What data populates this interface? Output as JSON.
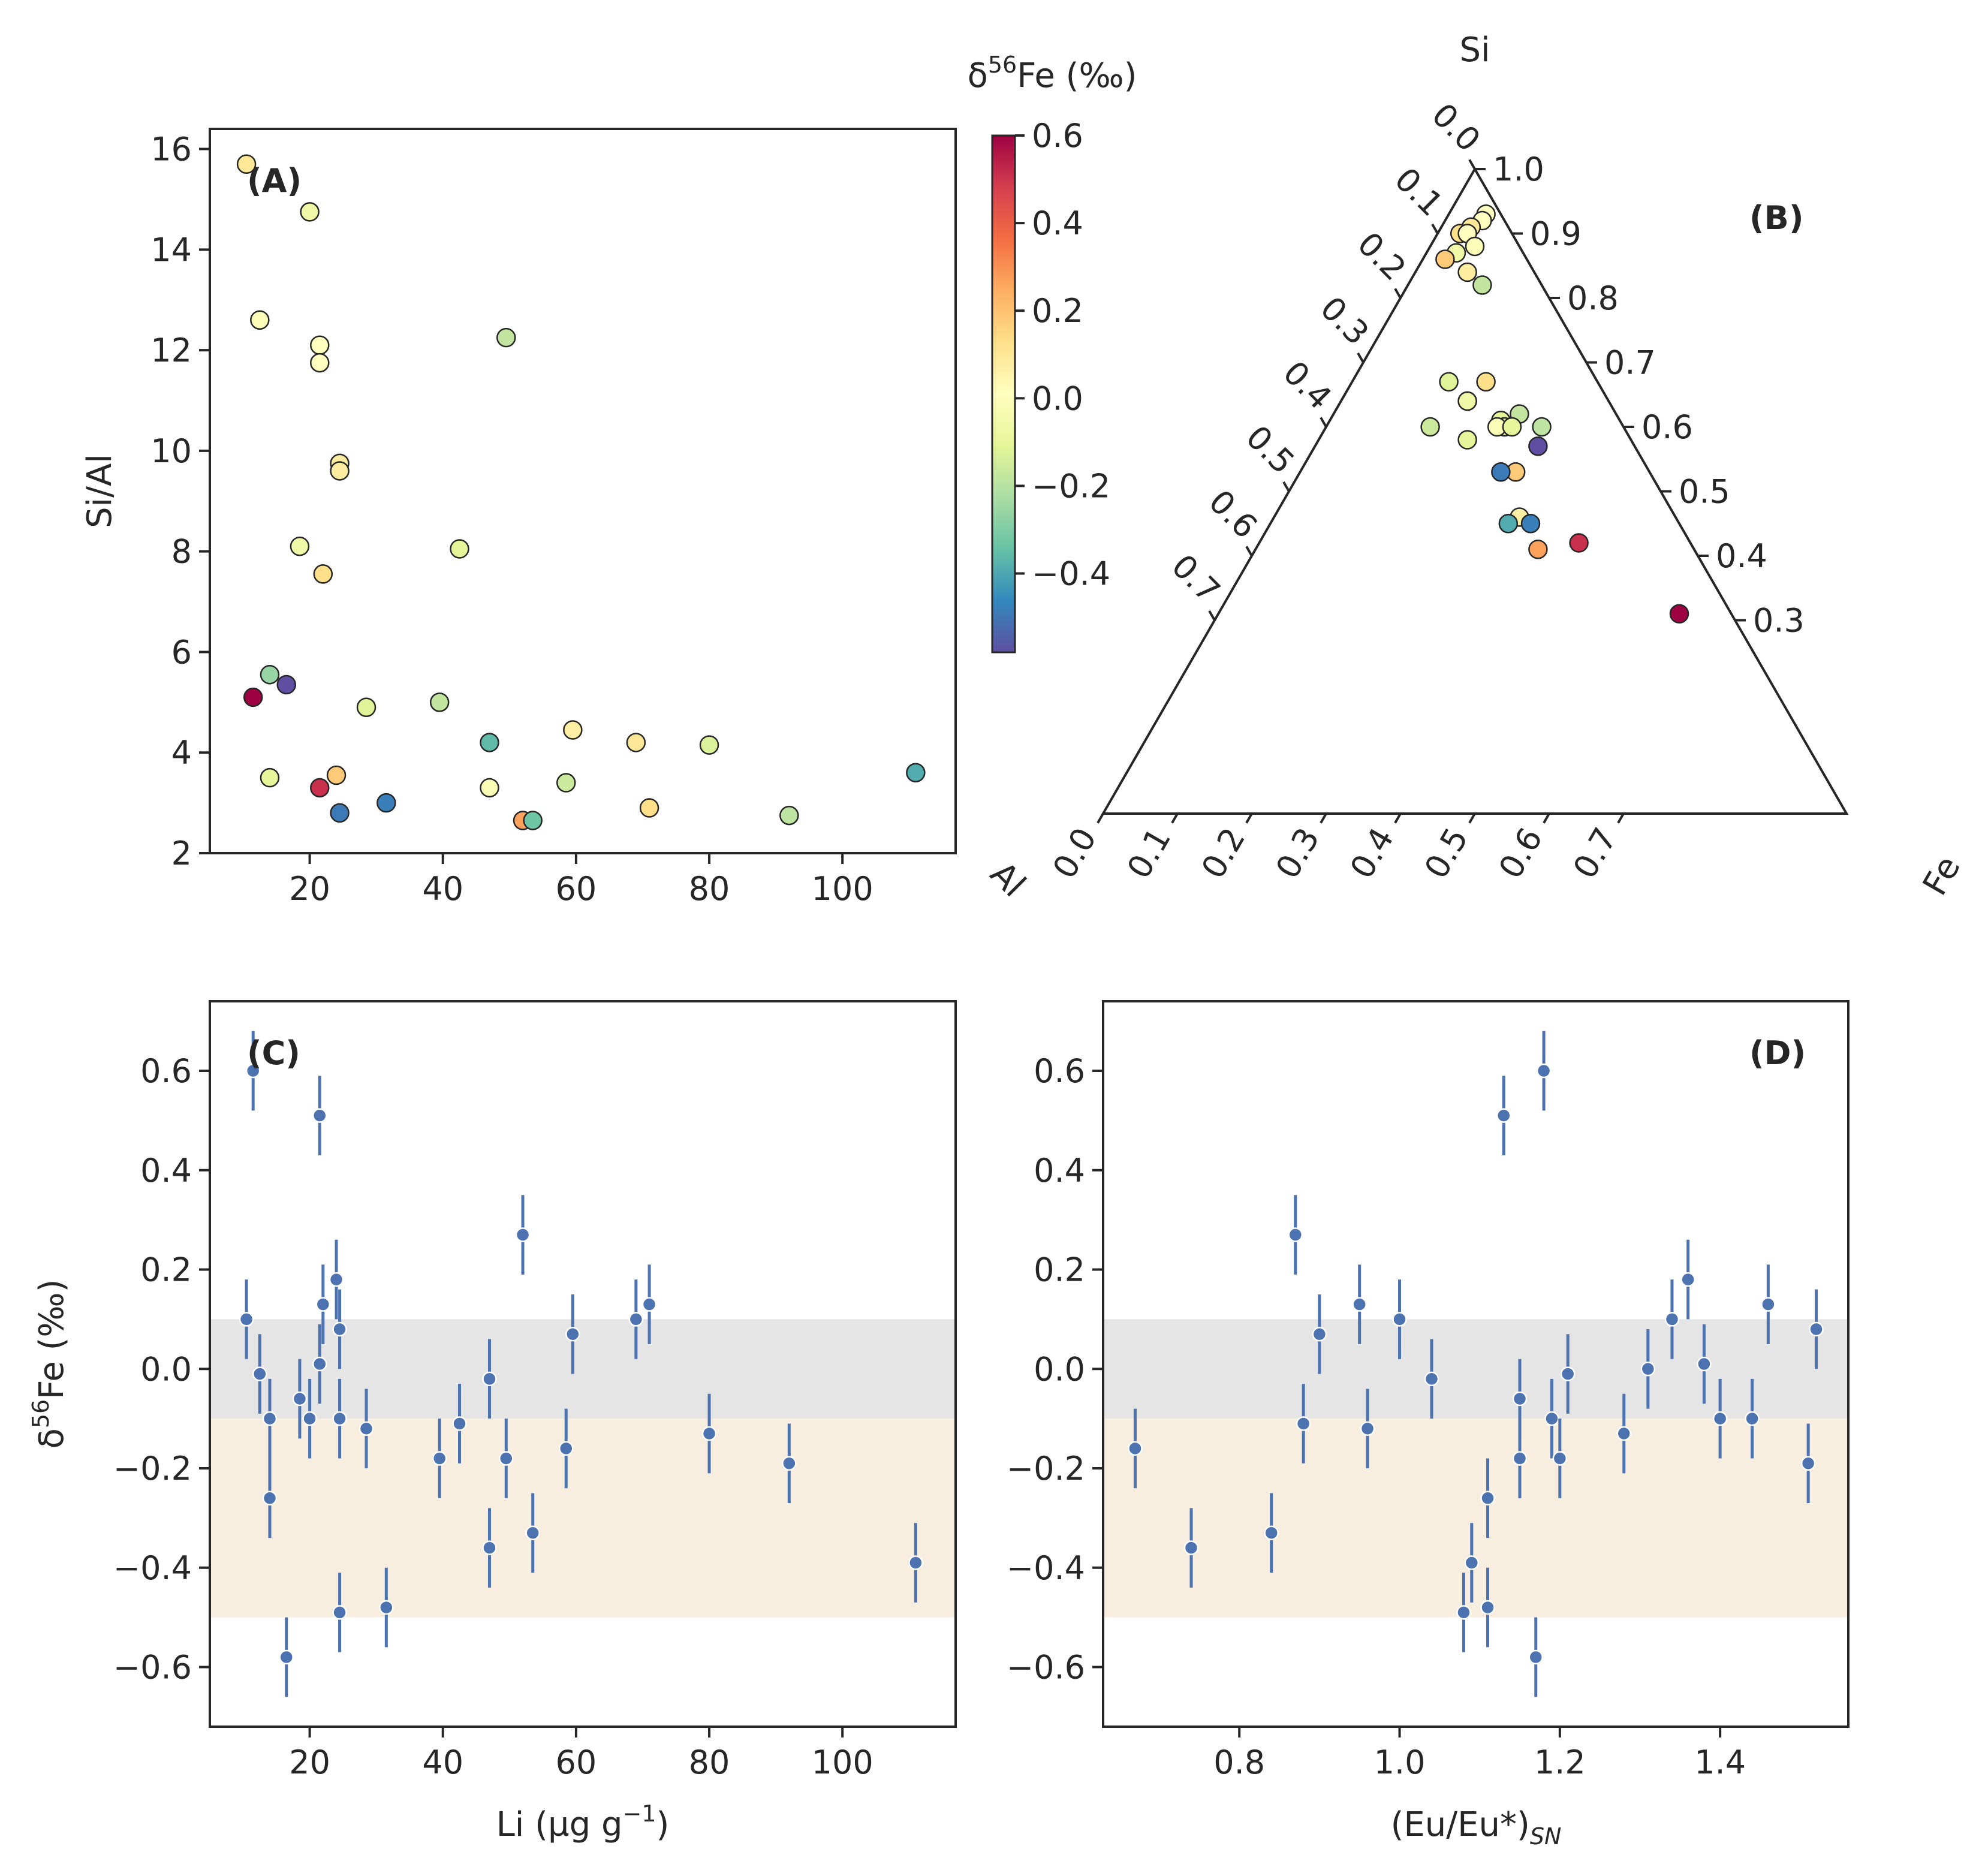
{
  "chart_data": [
    {
      "panel": "A",
      "type": "scatter",
      "label": "(A)",
      "xlabel": "",
      "ylabel": "Si/Al",
      "xlim": [
        5,
        117
      ],
      "ylim": [
        2,
        16.4
      ],
      "xticks": [
        20,
        40,
        60,
        80,
        100
      ],
      "xticklabels": [
        "20",
        "40",
        "60",
        "80",
        "100"
      ],
      "yticks": [
        2,
        4,
        6,
        8,
        10,
        12,
        14,
        16
      ],
      "yticklabels": [
        "2",
        "4",
        "6",
        "8",
        "10",
        "12",
        "14",
        "16"
      ],
      "color_by": "δ56Fe (‰)",
      "points": [
        {
          "x": 10.5,
          "y": 15.7,
          "c": 0.1
        },
        {
          "x": 20.0,
          "y": 14.75,
          "c": -0.06
        },
        {
          "x": 12.5,
          "y": 12.6,
          "c": -0.01
        },
        {
          "x": 21.5,
          "y": 12.1,
          "c": 0.01
        },
        {
          "x": 21.5,
          "y": 11.75,
          "c": 0.01
        },
        {
          "x": 49.5,
          "y": 12.25,
          "c": -0.18
        },
        {
          "x": 24.5,
          "y": 9.75,
          "c": 0.08
        },
        {
          "x": 24.5,
          "y": 9.6,
          "c": 0.08
        },
        {
          "x": 18.5,
          "y": 8.1,
          "c": -0.06
        },
        {
          "x": 42.5,
          "y": 8.05,
          "c": -0.11
        },
        {
          "x": 22.0,
          "y": 7.55,
          "c": 0.13
        },
        {
          "x": 14.0,
          "y": 5.55,
          "c": -0.26
        },
        {
          "x": 16.5,
          "y": 5.35,
          "c": -0.58
        },
        {
          "x": 11.5,
          "y": 5.1,
          "c": 0.6
        },
        {
          "x": 28.5,
          "y": 4.9,
          "c": -0.12
        },
        {
          "x": 39.5,
          "y": 5.0,
          "c": -0.18
        },
        {
          "x": 59.5,
          "y": 4.45,
          "c": 0.07
        },
        {
          "x": 47.0,
          "y": 4.2,
          "c": -0.36
        },
        {
          "x": 69.0,
          "y": 4.2,
          "c": 0.1
        },
        {
          "x": 80.0,
          "y": 4.15,
          "c": -0.13
        },
        {
          "x": 14.0,
          "y": 3.5,
          "c": -0.1
        },
        {
          "x": 24.0,
          "y": 3.55,
          "c": 0.18
        },
        {
          "x": 21.5,
          "y": 3.3,
          "c": 0.51
        },
        {
          "x": 47.0,
          "y": 3.3,
          "c": -0.02
        },
        {
          "x": 58.5,
          "y": 3.4,
          "c": -0.16
        },
        {
          "x": 24.5,
          "y": 2.8,
          "c": -0.49
        },
        {
          "x": 31.5,
          "y": 3.0,
          "c": -0.48
        },
        {
          "x": 52.0,
          "y": 2.65,
          "c": 0.27
        },
        {
          "x": 53.5,
          "y": 2.65,
          "c": -0.33
        },
        {
          "x": 71.0,
          "y": 2.9,
          "c": 0.13
        },
        {
          "x": 92.0,
          "y": 2.75,
          "c": -0.19
        },
        {
          "x": 111.0,
          "y": 3.6,
          "c": -0.39
        }
      ]
    },
    {
      "panel": "colorbar",
      "type": "heatmap",
      "title": "δ56Fe (‰)",
      "title_prefix": "δ",
      "title_sup": "56",
      "title_suffix": "Fe (‰)",
      "range": [
        -0.58,
        0.6
      ],
      "ticks": [
        0.6,
        0.4,
        0.2,
        0.0,
        -0.2,
        -0.4
      ],
      "ticklabels": [
        "0.6",
        "0.4",
        "0.2",
        "0.0",
        "−0.2",
        "−0.4"
      ],
      "colormap": "Spectral_r",
      "colors": [
        "#5e4fa2",
        "#3288bd",
        "#66c2a5",
        "#abdda4",
        "#e6f598",
        "#ffffbf",
        "#fee08b",
        "#fdae61",
        "#f46d43",
        "#d53e4f",
        "#9e0142"
      ]
    },
    {
      "panel": "B",
      "type": "scatter",
      "subtype": "ternary",
      "label": "(B)",
      "vertex_labels": {
        "top": "Si",
        "left": "Al",
        "right": "Fe"
      },
      "si_ticks": [
        1.0,
        0.9,
        0.8,
        0.7,
        0.6,
        0.5,
        0.4,
        0.3
      ],
      "si_ticklabels": [
        "1.0",
        "0.9",
        "0.8",
        "0.7",
        "0.6",
        "0.5",
        "0.4",
        "0.3"
      ],
      "al_ticks": [
        0.0,
        0.1,
        0.2,
        0.3,
        0.4,
        0.5,
        0.6,
        0.7
      ],
      "al_ticklabels": [
        "0.0",
        "0.1",
        "0.2",
        "0.3",
        "0.4",
        "0.5",
        "0.6",
        "0.7"
      ],
      "fe_ticks": [
        0.0,
        0.1,
        0.2,
        0.3,
        0.4,
        0.5,
        0.6,
        0.7
      ],
      "fe_ticklabels": [
        "0.0",
        "0.1",
        "0.2",
        "0.3",
        "0.4",
        "0.5",
        "0.6",
        "0.7"
      ],
      "points": [
        {
          "fe": 0.05,
          "si": 0.93,
          "c": 0.01
        },
        {
          "fe": 0.05,
          "si": 0.92,
          "c": 0.01
        },
        {
          "fe": 0.04,
          "si": 0.91,
          "c": 0.1
        },
        {
          "fe": 0.03,
          "si": 0.9,
          "c": 0.13
        },
        {
          "fe": 0.04,
          "si": 0.9,
          "c": 0.01
        },
        {
          "fe": 0.06,
          "si": 0.88,
          "c": -0.01
        },
        {
          "fe": 0.04,
          "si": 0.87,
          "c": -0.06
        },
        {
          "fe": 0.03,
          "si": 0.86,
          "c": 0.18
        },
        {
          "fe": 0.07,
          "si": 0.84,
          "c": 0.08
        },
        {
          "fe": 0.1,
          "si": 0.82,
          "c": -0.18
        },
        {
          "fe": 0.13,
          "si": 0.67,
          "c": -0.12
        },
        {
          "fe": 0.18,
          "si": 0.67,
          "c": 0.13
        },
        {
          "fe": 0.17,
          "si": 0.64,
          "c": -0.26
        },
        {
          "fe": 0.17,
          "si": 0.64,
          "c": -0.06
        },
        {
          "fe": 0.23,
          "si": 0.61,
          "c": -0.36
        },
        {
          "fe": 0.23,
          "si": 0.61,
          "c": -0.11
        },
        {
          "fe": 0.25,
          "si": 0.62,
          "c": -0.18
        },
        {
          "fe": 0.24,
          "si": 0.6,
          "c": -0.13
        },
        {
          "fe": 0.23,
          "si": 0.6,
          "c": -0.02
        },
        {
          "fe": 0.25,
          "si": 0.6,
          "c": -0.1
        },
        {
          "fe": 0.29,
          "si": 0.6,
          "c": -0.19
        },
        {
          "fe": 0.14,
          "si": 0.6,
          "c": -0.16
        },
        {
          "fe": 0.2,
          "si": 0.58,
          "c": -0.1
        },
        {
          "fe": 0.3,
          "si": 0.57,
          "c": -0.58
        },
        {
          "fe": 0.29,
          "si": 0.53,
          "c": 0.18
        },
        {
          "fe": 0.27,
          "si": 0.53,
          "c": -0.49
        },
        {
          "fe": 0.33,
          "si": 0.46,
          "c": 0.07
        },
        {
          "fe": 0.32,
          "si": 0.45,
          "c": -0.39
        },
        {
          "fe": 0.35,
          "si": 0.45,
          "c": -0.48
        },
        {
          "fe": 0.38,
          "si": 0.41,
          "c": 0.27
        },
        {
          "fe": 0.43,
          "si": 0.42,
          "c": 0.51
        },
        {
          "fe": 0.62,
          "si": 0.31,
          "c": 0.6
        }
      ]
    },
    {
      "panel": "C",
      "type": "scatter",
      "label": "(C)",
      "xlabel": "Li (µg g−1)",
      "xlabel_main": "Li (µg g",
      "xlabel_sup": "−1",
      "xlabel_end": ")",
      "ylabel": "δ56Fe (‰)",
      "xlim": [
        5,
        117
      ],
      "ylim": [
        -0.72,
        0.74
      ],
      "xticks": [
        20,
        40,
        60,
        80,
        100
      ],
      "xticklabels": [
        "20",
        "40",
        "60",
        "80",
        "100"
      ],
      "yticks": [
        -0.6,
        -0.4,
        -0.2,
        0.0,
        0.2,
        0.4,
        0.6
      ],
      "yticklabels": [
        "−0.6",
        "−0.4",
        "−0.2",
        "0.0",
        "0.2",
        "0.4",
        "0.6"
      ],
      "bands": [
        {
          "y0": -0.1,
          "y1": 0.1,
          "color": "#e5e5e5"
        },
        {
          "y0": -0.5,
          "y1": -0.1,
          "color": "#f7eee0"
        }
      ],
      "error": 0.08,
      "points": [
        {
          "x": 10.5,
          "y": 0.1
        },
        {
          "x": 11.5,
          "y": 0.6
        },
        {
          "x": 12.5,
          "y": -0.01
        },
        {
          "x": 14.0,
          "y": -0.1
        },
        {
          "x": 14.0,
          "y": -0.26
        },
        {
          "x": 16.5,
          "y": -0.58
        },
        {
          "x": 18.5,
          "y": -0.06
        },
        {
          "x": 20.0,
          "y": -0.1
        },
        {
          "x": 21.5,
          "y": 0.51
        },
        {
          "x": 21.5,
          "y": 0.01
        },
        {
          "x": 22.0,
          "y": 0.13
        },
        {
          "x": 24.0,
          "y": 0.18
        },
        {
          "x": 24.5,
          "y": 0.08
        },
        {
          "x": 24.5,
          "y": -0.1
        },
        {
          "x": 24.5,
          "y": -0.49
        },
        {
          "x": 28.5,
          "y": -0.12
        },
        {
          "x": 31.5,
          "y": -0.48
        },
        {
          "x": 39.5,
          "y": -0.18
        },
        {
          "x": 42.5,
          "y": -0.11
        },
        {
          "x": 47.0,
          "y": -0.02
        },
        {
          "x": 47.0,
          "y": -0.36
        },
        {
          "x": 49.5,
          "y": -0.18
        },
        {
          "x": 52.0,
          "y": 0.27
        },
        {
          "x": 53.5,
          "y": -0.33
        },
        {
          "x": 58.5,
          "y": -0.16
        },
        {
          "x": 59.5,
          "y": 0.07
        },
        {
          "x": 69.0,
          "y": 0.1
        },
        {
          "x": 71.0,
          "y": 0.13
        },
        {
          "x": 80.0,
          "y": -0.13
        },
        {
          "x": 92.0,
          "y": -0.19
        },
        {
          "x": 111.0,
          "y": -0.39
        }
      ]
    },
    {
      "panel": "D",
      "type": "scatter",
      "label": "(D)",
      "xlabel": "(Eu/Eu*)SN",
      "xlabel_main": "(Eu/Eu*)",
      "xlabel_sub": "SN",
      "ylabel": "",
      "xlim": [
        0.63,
        1.56
      ],
      "ylim": [
        -0.72,
        0.74
      ],
      "xticks": [
        0.8,
        1.0,
        1.2,
        1.4
      ],
      "xticklabels": [
        "0.8",
        "1.0",
        "1.2",
        "1.4"
      ],
      "yticks": [
        -0.6,
        -0.4,
        -0.2,
        0.0,
        0.2,
        0.4,
        0.6
      ],
      "yticklabels": [
        "−0.6",
        "−0.4",
        "−0.2",
        "0.0",
        "0.2",
        "0.4",
        "0.6"
      ],
      "bands": [
        {
          "y0": -0.1,
          "y1": 0.1,
          "color": "#e5e5e5"
        },
        {
          "y0": -0.5,
          "y1": -0.1,
          "color": "#f7eee0"
        }
      ],
      "error": 0.08,
      "points": [
        {
          "x": 0.67,
          "y": -0.16
        },
        {
          "x": 0.74,
          "y": -0.36
        },
        {
          "x": 0.84,
          "y": -0.33
        },
        {
          "x": 0.87,
          "y": 0.27
        },
        {
          "x": 0.88,
          "y": -0.11
        },
        {
          "x": 0.9,
          "y": 0.07
        },
        {
          "x": 0.95,
          "y": 0.13
        },
        {
          "x": 0.96,
          "y": -0.12
        },
        {
          "x": 1.0,
          "y": 0.1
        },
        {
          "x": 1.04,
          "y": -0.02
        },
        {
          "x": 1.08,
          "y": -0.49
        },
        {
          "x": 1.09,
          "y": -0.39
        },
        {
          "x": 1.11,
          "y": -0.26
        },
        {
          "x": 1.11,
          "y": -0.48
        },
        {
          "x": 1.13,
          "y": 0.51
        },
        {
          "x": 1.15,
          "y": -0.06
        },
        {
          "x": 1.15,
          "y": -0.18
        },
        {
          "x": 1.17,
          "y": -0.58
        },
        {
          "x": 1.18,
          "y": 0.6
        },
        {
          "x": 1.19,
          "y": -0.1
        },
        {
          "x": 1.2,
          "y": -0.18
        },
        {
          "x": 1.21,
          "y": -0.01
        },
        {
          "x": 1.28,
          "y": -0.13
        },
        {
          "x": 1.31,
          "y": 0.0
        },
        {
          "x": 1.34,
          "y": 0.1
        },
        {
          "x": 1.36,
          "y": 0.18
        },
        {
          "x": 1.38,
          "y": 0.01
        },
        {
          "x": 1.4,
          "y": -0.1
        },
        {
          "x": 1.44,
          "y": -0.1
        },
        {
          "x": 1.46,
          "y": 0.13
        },
        {
          "x": 1.51,
          "y": -0.19
        },
        {
          "x": 1.52,
          "y": 0.08
        }
      ]
    }
  ]
}
